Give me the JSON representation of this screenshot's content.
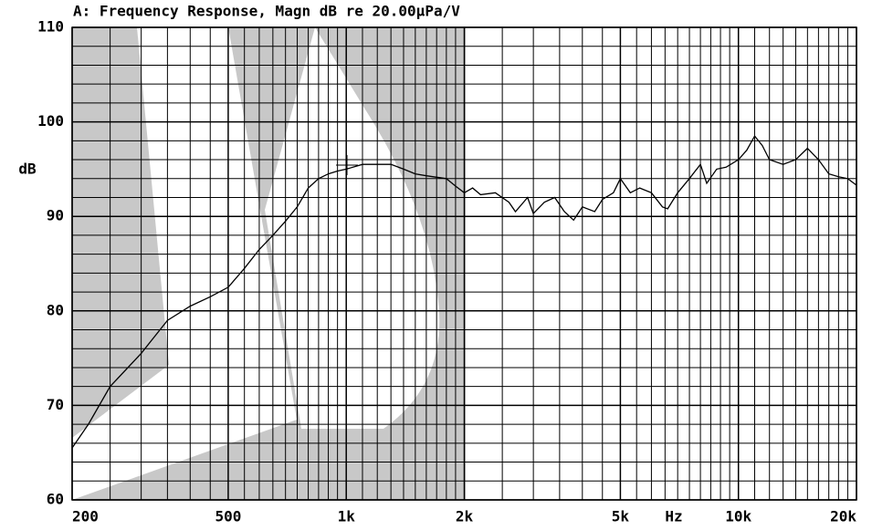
{
  "chart_data": {
    "type": "line",
    "title": "A: Frequency Response, Magn dB re 20.00µPa/V",
    "y_label": "dB",
    "x_label": "Hz",
    "log_x": true,
    "grid": true,
    "color": "#000000",
    "xlim": [
      200,
      20000
    ],
    "ylim": [
      60,
      110
    ],
    "yticks": [
      60,
      70,
      80,
      90,
      100,
      110
    ],
    "xticks": [
      200,
      500,
      {
        "value": 1000,
        "label": "1k"
      },
      {
        "value": 2000,
        "label": "2k"
      },
      {
        "value": 5000,
        "label": "5k"
      },
      {
        "value": 10000,
        "label": "10k"
      },
      {
        "value": 20000,
        "label": "20k"
      }
    ],
    "x_minor_grid": [
      250,
      300,
      350,
      400,
      450,
      550,
      600,
      650,
      700,
      750,
      800,
      850,
      900,
      950,
      1100,
      1200,
      1300,
      1400,
      1500,
      1600,
      1700,
      1800,
      1900,
      2500,
      3000,
      3500,
      4000,
      4500,
      5500,
      6000,
      6500,
      7000,
      7500,
      8000,
      8500,
      9000,
      9500,
      11000,
      12000,
      13000,
      14000,
      15000,
      16000,
      17000,
      18000,
      19000
    ],
    "y_minor_grid": [
      62,
      64,
      66,
      68,
      72,
      74,
      76,
      78,
      82,
      84,
      86,
      88,
      92,
      94,
      96,
      98,
      102,
      104,
      106,
      108
    ],
    "x": [
      200,
      220,
      250,
      300,
      350,
      400,
      450,
      500,
      550,
      600,
      650,
      700,
      750,
      800,
      850,
      900,
      950,
      1000,
      1100,
      1200,
      1300,
      1400,
      1500,
      1600,
      1800,
      1900,
      2000,
      2100,
      2200,
      2400,
      2600,
      2700,
      2900,
      3000,
      3200,
      3400,
      3600,
      3800,
      4000,
      4300,
      4500,
      4800,
      5000,
      5300,
      5600,
      6000,
      6400,
      6600,
      7000,
      7500,
      8000,
      8300,
      8800,
      9300,
      10000,
      10500,
      11000,
      11500,
      12000,
      13000,
      14000,
      15000,
      16000,
      17000,
      18000,
      19000,
      20000
    ],
    "values": [
      65.5,
      68,
      72,
      75.5,
      79,
      80.5,
      81.5,
      82.5,
      84.5,
      86.5,
      88,
      89.5,
      91,
      93,
      94,
      94.5,
      94.8,
      95,
      95.5,
      95.5,
      95.5,
      95,
      94.5,
      94.3,
      94,
      93.2,
      92.5,
      93,
      92.3,
      92.5,
      91.5,
      90.5,
      92,
      90.3,
      91.5,
      92,
      90.5,
      89.6,
      91,
      90.5,
      91.8,
      92.5,
      94,
      92.5,
      93,
      92.5,
      91,
      90.8,
      92.5,
      94,
      95.5,
      93.5,
      95,
      95.2,
      96,
      97,
      98.5,
      97.5,
      96,
      95.5,
      96,
      97.2,
      96,
      94.5,
      94.2,
      94,
      93.3
    ]
  }
}
